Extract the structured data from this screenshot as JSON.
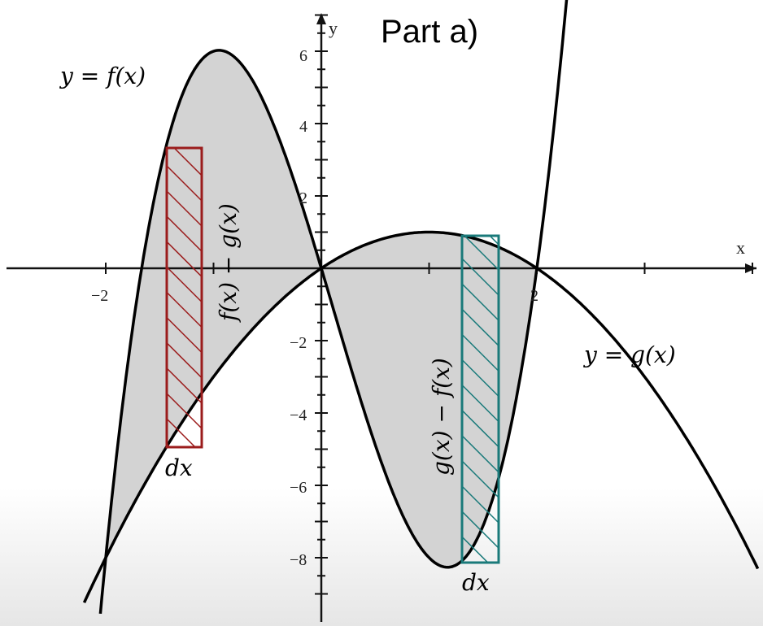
{
  "title": "Part a)",
  "axes": {
    "x_label": "x",
    "y_label": "y",
    "x_ticks": [
      "−2",
      "2"
    ],
    "y_ticks": [
      "6",
      "4",
      "2",
      "−2",
      "−4",
      "−6",
      "−8"
    ]
  },
  "curves": [
    {
      "label": "y = f(x)"
    },
    {
      "label": "y = g(x)"
    }
  ],
  "strips": [
    {
      "height_label": "f(x) − g(x)",
      "width_label": "dx"
    },
    {
      "height_label": "g(x) − f(x)",
      "width_label": "dx"
    }
  ]
}
